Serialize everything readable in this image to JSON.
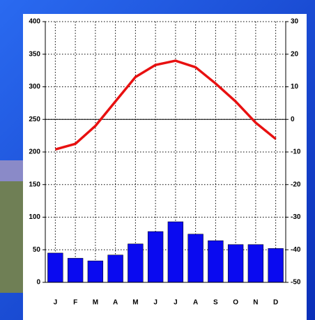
{
  "chart_data": {
    "type": "climograph",
    "categories": [
      "J",
      "F",
      "M",
      "A",
      "M",
      "J",
      "J",
      "A",
      "S",
      "O",
      "N",
      "D"
    ],
    "series": [
      {
        "type": "bar",
        "color": "#0a0af0",
        "values": [
          45,
          37,
          33,
          42,
          59,
          78,
          93,
          74,
          64,
          58,
          58,
          52
        ]
      },
      {
        "type": "line",
        "axis": "y2",
        "color": "#e81010",
        "values": [
          -9.2,
          -7.5,
          -2,
          5.5,
          13,
          16.7,
          18,
          16,
          11,
          5.5,
          -1,
          -6
        ]
      }
    ],
    "ylim": [
      0,
      400
    ],
    "yticks": [
      0,
      50,
      100,
      150,
      200,
      250,
      300,
      350,
      400
    ],
    "y2lim": [
      -50,
      30
    ],
    "y2ticks": [
      -50,
      -40,
      -30,
      -20,
      -10,
      0,
      10,
      20,
      30
    ],
    "grid": true
  }
}
